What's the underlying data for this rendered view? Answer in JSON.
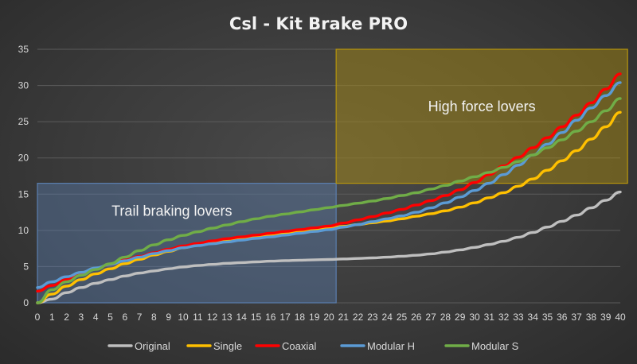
{
  "chart_data": {
    "type": "line",
    "title": "Csl - Kit Brake PRO",
    "xlabel": "",
    "ylabel": "",
    "ylim": [
      0,
      35
    ],
    "yticks": [
      0,
      5,
      10,
      15,
      20,
      25,
      30,
      35
    ],
    "x": [
      0,
      1,
      2,
      3,
      4,
      5,
      6,
      7,
      8,
      9,
      10,
      11,
      12,
      13,
      14,
      15,
      16,
      17,
      18,
      19,
      20,
      21,
      22,
      23,
      24,
      25,
      26,
      27,
      28,
      29,
      30,
      31,
      32,
      33,
      34,
      35,
      36,
      37,
      38,
      39,
      40
    ],
    "grid": true,
    "legend_position": "bottom",
    "series": [
      {
        "name": "Original",
        "color": "#bfbfbf",
        "values": [
          0,
          0.5,
          1.4,
          2.1,
          2.7,
          3.2,
          3.7,
          4.1,
          4.4,
          4.7,
          4.95,
          5.15,
          5.3,
          5.45,
          5.55,
          5.65,
          5.75,
          5.82,
          5.88,
          5.93,
          5.98,
          6.05,
          6.12,
          6.2,
          6.3,
          6.42,
          6.56,
          6.75,
          7.0,
          7.3,
          7.65,
          8.05,
          8.5,
          9.05,
          9.7,
          10.45,
          11.25,
          12.1,
          13.1,
          14.15,
          15.3
        ]
      },
      {
        "name": "Single",
        "color": "#ffc000",
        "values": [
          0,
          1.2,
          2.3,
          3.2,
          4.0,
          4.7,
          5.4,
          6.0,
          6.6,
          7.1,
          7.6,
          7.95,
          8.3,
          8.6,
          8.9,
          9.15,
          9.4,
          9.65,
          9.9,
          10.1,
          10.3,
          10.55,
          10.8,
          11.05,
          11.3,
          11.6,
          11.95,
          12.3,
          12.7,
          13.2,
          13.8,
          14.5,
          15.2,
          16.1,
          17.1,
          18.3,
          19.6,
          21.0,
          22.6,
          24.3,
          26.3
        ]
      },
      {
        "name": "Coaxial",
        "color": "#ff0000",
        "values": [
          1.6,
          2.4,
          3.2,
          4.0,
          4.7,
          5.3,
          5.9,
          6.4,
          6.9,
          7.4,
          7.85,
          8.2,
          8.55,
          8.85,
          9.1,
          9.35,
          9.6,
          9.85,
          10.1,
          10.35,
          10.6,
          11.0,
          11.45,
          11.9,
          12.4,
          12.9,
          13.5,
          14.1,
          14.8,
          15.6,
          16.6,
          17.7,
          18.9,
          20.1,
          21.4,
          22.8,
          24.3,
          25.9,
          27.6,
          29.5,
          31.6
        ]
      },
      {
        "name": "Modular H",
        "color": "#5b9bd5",
        "values": [
          2.1,
          2.9,
          3.6,
          4.2,
          4.8,
          5.3,
          5.8,
          6.3,
          6.8,
          7.2,
          7.6,
          7.9,
          8.15,
          8.4,
          8.65,
          8.9,
          9.1,
          9.35,
          9.6,
          9.85,
          10.1,
          10.45,
          10.8,
          11.2,
          11.6,
          12.0,
          12.5,
          13.1,
          13.8,
          14.6,
          15.5,
          16.5,
          17.7,
          19.0,
          20.4,
          21.9,
          23.5,
          25.2,
          26.9,
          28.6,
          30.4
        ]
      },
      {
        "name": "Modular S",
        "color": "#70ad47",
        "values": [
          0,
          1.8,
          2.9,
          3.8,
          4.6,
          5.4,
          6.3,
          7.2,
          8.0,
          8.7,
          9.3,
          9.8,
          10.3,
          10.75,
          11.2,
          11.6,
          11.95,
          12.25,
          12.55,
          12.85,
          13.15,
          13.45,
          13.75,
          14.05,
          14.4,
          14.8,
          15.2,
          15.7,
          16.2,
          16.8,
          17.4,
          18.0,
          18.7,
          19.5,
          20.4,
          21.4,
          22.5,
          23.7,
          25.0,
          26.5,
          28.2
        ]
      }
    ],
    "annotations": [
      {
        "text": "Trail braking lovers",
        "x_range": [
          0,
          20.5
        ],
        "y_range": [
          0,
          16.5
        ],
        "color": "#5b7fb0"
      },
      {
        "text": "High force lovers",
        "x_range": [
          20.5,
          40.5
        ],
        "y_range": [
          16.5,
          35
        ],
        "color": "#b8960c"
      }
    ]
  }
}
